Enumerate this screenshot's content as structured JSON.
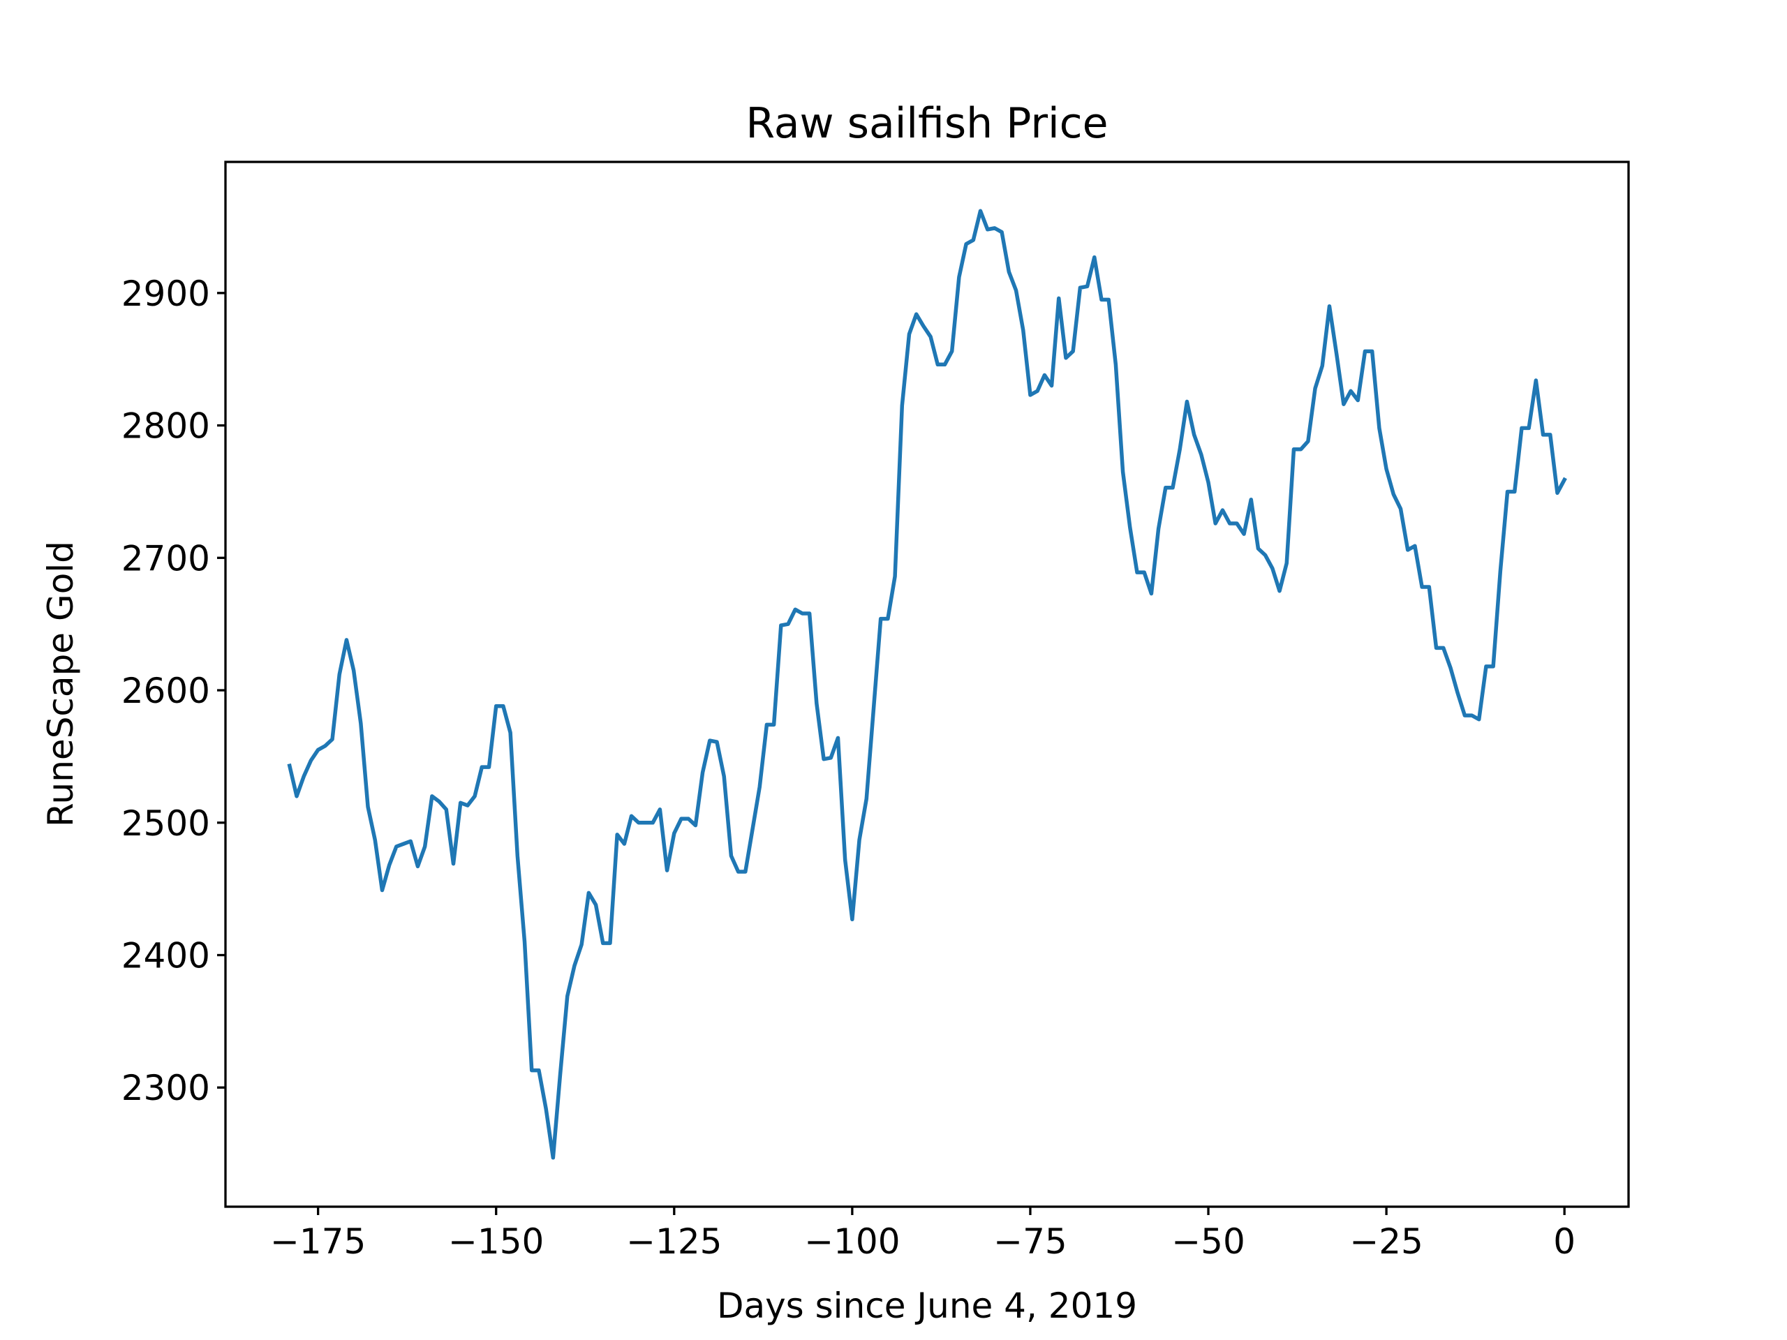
{
  "chart_data": {
    "type": "line",
    "title": "Raw sailfish Price",
    "xlabel": "Days since June 4, 2019",
    "ylabel": "RuneScape Gold",
    "xlim": [
      -188,
      9
    ],
    "ylim": [
      2210,
      2999
    ],
    "xticks": [
      -175,
      -150,
      -125,
      -100,
      -75,
      -50,
      -25,
      0
    ],
    "xtick_labels": [
      "−175",
      "−150",
      "−125",
      "−100",
      "−75",
      "−50",
      "−25",
      "0"
    ],
    "yticks": [
      2300,
      2400,
      2500,
      2600,
      2700,
      2800,
      2900
    ],
    "ytick_labels": [
      "2300",
      "2400",
      "2500",
      "2600",
      "2700",
      "2800",
      "2900"
    ],
    "grid": false,
    "color": "#1f77b4",
    "series": [
      {
        "x": [
          -179,
          -178,
          -177,
          -176,
          -175,
          -174,
          -173,
          -172,
          -171,
          -170,
          -169,
          -168,
          -167,
          -166,
          -165,
          -164,
          -163,
          -162,
          -161,
          -160,
          -159,
          -158,
          -157,
          -156,
          -155,
          -154,
          -153,
          -152,
          -151,
          -150,
          -149,
          -148,
          -147,
          -146,
          -145,
          -144,
          -143,
          -142,
          -141,
          -140,
          -139,
          -138,
          -137,
          -136,
          -135,
          -134,
          -133,
          -132,
          -131,
          -130,
          -129,
          -128,
          -127,
          -126,
          -125,
          -124,
          -123,
          -122,
          -121,
          -120,
          -119,
          -118,
          -117,
          -116,
          -115,
          -114,
          -113,
          -112,
          -111,
          -110,
          -109,
          -108,
          -107,
          -106,
          -105,
          -104,
          -103,
          -102,
          -101,
          -100,
          -99,
          -98,
          -97,
          -96,
          -95,
          -94,
          -93,
          -92,
          -91,
          -90,
          -89,
          -88,
          -87,
          -86,
          -85,
          -84,
          -83,
          -82,
          -81,
          -80,
          -79,
          -78,
          -77,
          -76,
          -75,
          -74,
          -73,
          -72,
          -71,
          -70,
          -69,
          -68,
          -67,
          -66,
          -65,
          -64,
          -63,
          -62,
          -61,
          -60,
          -59,
          -58,
          -57,
          -56,
          -55,
          -54,
          -53,
          -52,
          -51,
          -50,
          -49,
          -48,
          -47,
          -46,
          -45,
          -44,
          -43,
          -42,
          -41,
          -40,
          -39,
          -38,
          -37,
          -36,
          -35,
          -34,
          -33,
          -32,
          -31,
          -30,
          -29,
          -28,
          -27,
          -26,
          -25,
          -24,
          -23,
          -22,
          -21,
          -20,
          -19,
          -18,
          -17,
          -16,
          -15,
          -14,
          -13,
          -12,
          -11,
          -10,
          -9,
          -8,
          -7,
          -6,
          -5,
          -4,
          -3,
          -2,
          -1,
          0
        ],
        "values": [
          2543,
          2520,
          2535,
          2547,
          2555,
          2558,
          2563,
          2612,
          2638,
          2615,
          2575,
          2512,
          2487,
          2449,
          2468,
          2482,
          2484,
          2486,
          2467,
          2482,
          2520,
          2516,
          2510,
          2469,
          2515,
          2513,
          2520,
          2542,
          2542,
          2588,
          2588,
          2568,
          2475,
          2410,
          2313,
          2313,
          2284,
          2247,
          2310,
          2369,
          2392,
          2408,
          2447,
          2438,
          2409,
          2409,
          2491,
          2484,
          2505,
          2500,
          2500,
          2500,
          2510,
          2464,
          2492,
          2503,
          2503,
          2498,
          2538,
          2562,
          2561,
          2535,
          2475,
          2463,
          2463,
          2495,
          2527,
          2574,
          2574,
          2649,
          2650,
          2661,
          2658,
          2658,
          2590,
          2548,
          2549,
          2564,
          2472,
          2427,
          2487,
          2518,
          2586,
          2654,
          2654,
          2686,
          2815,
          2869,
          2884,
          2875,
          2867,
          2846,
          2846,
          2856,
          2912,
          2937,
          2940,
          2962,
          2948,
          2949,
          2946,
          2916,
          2902,
          2872,
          2823,
          2826,
          2838,
          2830,
          2896,
          2851,
          2856,
          2904,
          2905,
          2927,
          2895,
          2895,
          2846,
          2765,
          2723,
          2689,
          2689,
          2673,
          2722,
          2753,
          2753,
          2782,
          2818,
          2793,
          2778,
          2757,
          2726,
          2736,
          2726,
          2726,
          2718,
          2744,
          2707,
          2702,
          2692,
          2675,
          2696,
          2782,
          2782,
          2788,
          2828,
          2845,
          2890,
          2854,
          2816,
          2826,
          2819,
          2856,
          2856,
          2798,
          2767,
          2748,
          2737,
          2706,
          2709,
          2678,
          2678,
          2632,
          2632,
          2617,
          2598,
          2581,
          2581,
          2578,
          2618,
          2618,
          2690,
          2750,
          2750,
          2798,
          2798,
          2834,
          2793,
          2793,
          2749,
          2759
        ]
      }
    ]
  }
}
